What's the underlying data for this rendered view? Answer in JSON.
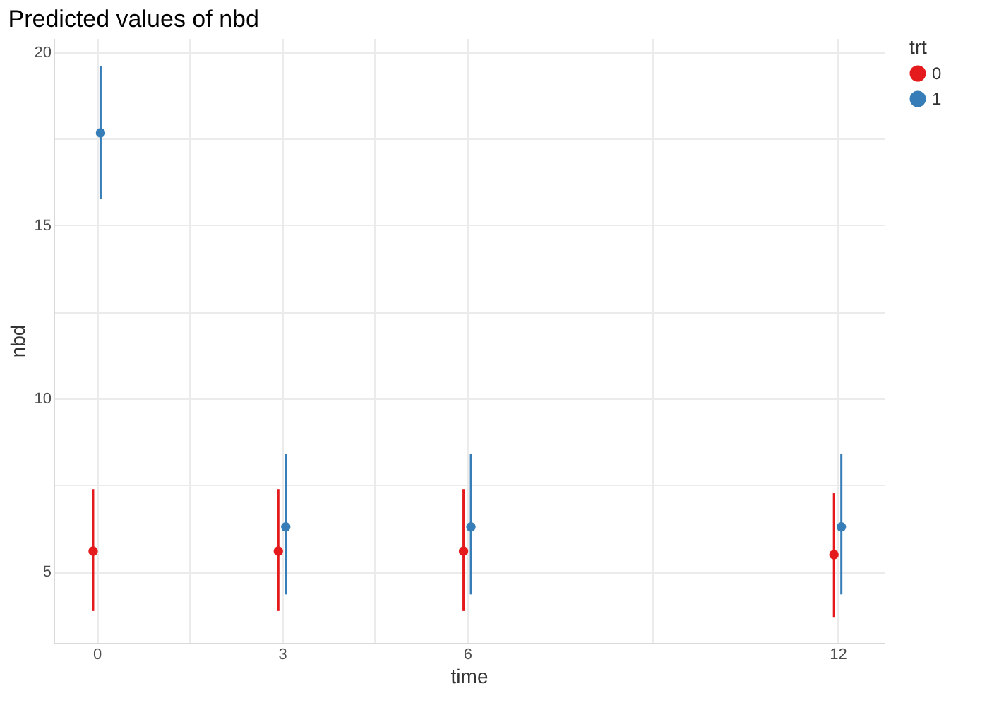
{
  "chart_data": {
    "type": "scatter",
    "title": "Predicted values of nbd",
    "xlabel": "time",
    "ylabel": "nbd",
    "legend_title": "trt",
    "legend": "right",
    "grid": true,
    "marker": "circle",
    "xlim": [
      -0.7,
      12.75
    ],
    "xticks": [
      0,
      {
        "value": 1.5,
        "label": null
      },
      3,
      {
        "value": 4.5,
        "label": null
      },
      6,
      {
        "value": 9,
        "label": null
      },
      12
    ],
    "ylim": [
      2.95,
      20.4
    ],
    "yticks": [
      5,
      {
        "value": 7.5,
        "label": null
      },
      10,
      {
        "value": 12.5,
        "label": null
      },
      15,
      {
        "value": 17.5,
        "label": null
      },
      20
    ],
    "series": [
      {
        "name": "0",
        "color": "#e41a1c",
        "x": [
          -0.06,
          2.94,
          5.94,
          11.94
        ],
        "values": [
          5.6,
          5.6,
          5.6,
          5.5
        ],
        "errors": [
          [
            3.87,
            7.39
          ],
          [
            3.87,
            7.39
          ],
          [
            3.87,
            7.39
          ],
          [
            3.7,
            7.27
          ]
        ]
      },
      {
        "name": "1",
        "color": "#377eb8",
        "x": [
          0.06,
          3.06,
          6.06,
          12.06
        ],
        "values": [
          17.67,
          6.3,
          6.3,
          6.3
        ],
        "errors": [
          [
            15.77,
            19.6
          ],
          [
            4.35,
            8.41
          ],
          [
            4.35,
            8.41
          ],
          [
            4.35,
            8.41
          ]
        ]
      }
    ]
  }
}
